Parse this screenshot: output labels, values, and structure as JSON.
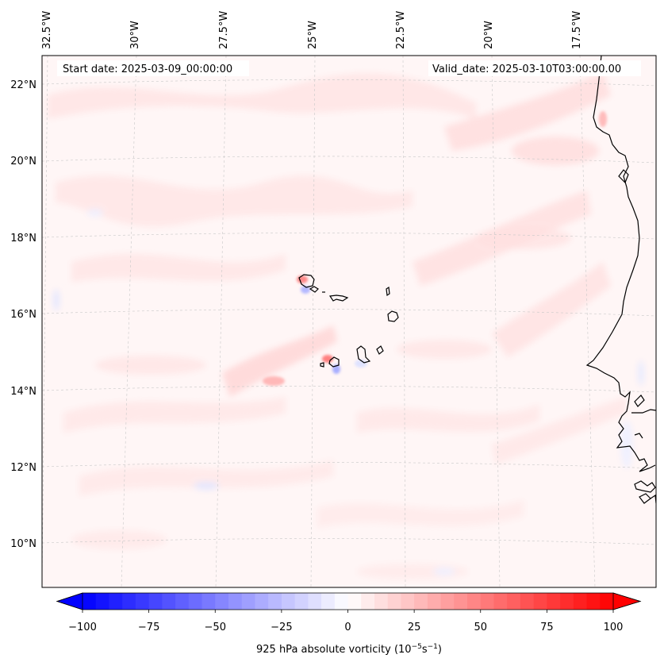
{
  "header": {
    "start_date": "Start date: 2025-03-09_00:00:00",
    "valid_date": "Valid_date: 2025-03-10T03:00:00.00"
  },
  "axes": {
    "lon_labels": [
      "32.5°W",
      "30°W",
      "27.5°W",
      "25°W",
      "22.5°W",
      "20°W",
      "17.5°W"
    ],
    "lat_labels": [
      "22°N",
      "20°N",
      "18°N",
      "16°N",
      "14°N",
      "12°N",
      "10°N"
    ]
  },
  "colorbar": {
    "label": "925 hPa absolute vorticity (10",
    "label_exp1": "−5",
    "label_mid": "s",
    "label_exp2": "−1",
    "label_end": ")",
    "min": -100,
    "max": 100,
    "step": 5,
    "ticks": [
      "−100",
      "−75",
      "−50",
      "−25",
      "0",
      "25",
      "50",
      "75",
      "100"
    ],
    "tick_values": [
      -100,
      -75,
      -50,
      -25,
      0,
      25,
      50,
      75,
      100
    ],
    "colormap": "bwr",
    "extend": "both"
  },
  "field": {
    "variable": "925 hPa absolute vorticity",
    "background_color": "#fff6f6",
    "positive_patch_color": "#ffe0e0",
    "negative_patch_color": "#eef0ff",
    "max_color": "#ff0000",
    "min_color": "#0000ff"
  },
  "features": {
    "coastline_color": "#000000",
    "gridline_color": "#bfbfbf"
  }
}
